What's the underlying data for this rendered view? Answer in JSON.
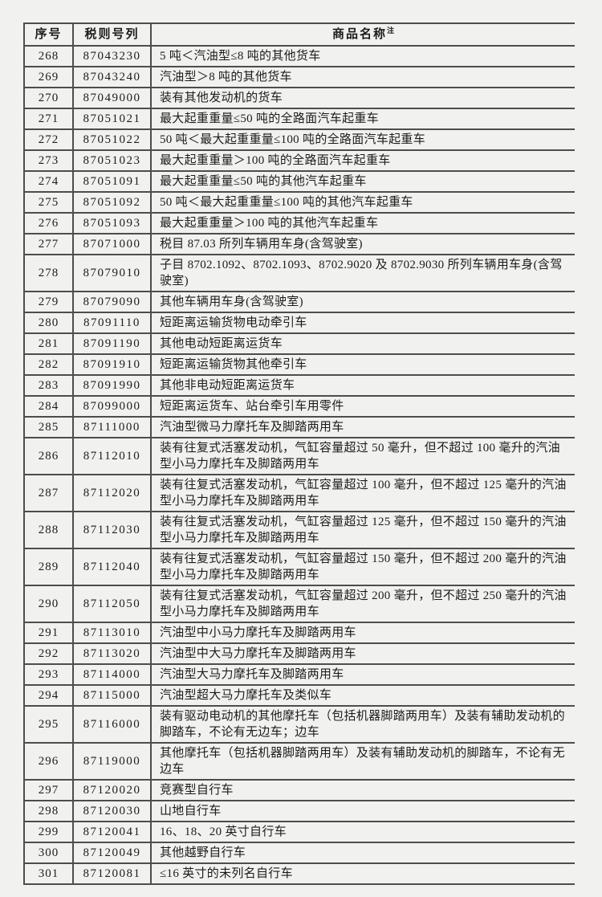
{
  "page": {
    "background_color": "#f1f1ef",
    "line_color": "#4d4d4d",
    "text_color": "#1c1c1c"
  },
  "table": {
    "columns": {
      "index_label": "序号",
      "code_label": "税则号列",
      "name_label": "商品名称",
      "name_note": "注"
    },
    "rows": [
      {
        "no": "268",
        "code": "87043230",
        "name": "5 吨＜汽油型≤8 吨的其他货车"
      },
      {
        "no": "269",
        "code": "87043240",
        "name": "汽油型＞8 吨的其他货车"
      },
      {
        "no": "270",
        "code": "87049000",
        "name": "装有其他发动机的货车"
      },
      {
        "no": "271",
        "code": "87051021",
        "name": "最大起重重量≤50 吨的全路面汽车起重车"
      },
      {
        "no": "272",
        "code": "87051022",
        "name": "50 吨＜最大起重重量≤100 吨的全路面汽车起重车"
      },
      {
        "no": "273",
        "code": "87051023",
        "name": "最大起重重量＞100 吨的全路面汽车起重车"
      },
      {
        "no": "274",
        "code": "87051091",
        "name": "最大起重重量≤50 吨的其他汽车起重车"
      },
      {
        "no": "275",
        "code": "87051092",
        "name": "50 吨＜最大起重重量≤100 吨的其他汽车起重车"
      },
      {
        "no": "276",
        "code": "87051093",
        "name": "最大起重重量＞100 吨的其他汽车起重车"
      },
      {
        "no": "277",
        "code": "87071000",
        "name": "税目 87.03 所列车辆用车身(含驾驶室)"
      },
      {
        "no": "278",
        "code": "87079010",
        "name": "子目 8702.1092、8702.1093、8702.9020 及 8702.9030 所列车辆用车身(含驾驶室)"
      },
      {
        "no": "279",
        "code": "87079090",
        "name": "其他车辆用车身(含驾驶室)"
      },
      {
        "no": "280",
        "code": "87091110",
        "name": "短距离运输货物电动牵引车"
      },
      {
        "no": "281",
        "code": "87091190",
        "name": "其他电动短距离运货车"
      },
      {
        "no": "282",
        "code": "87091910",
        "name": "短距离运输货物其他牵引车"
      },
      {
        "no": "283",
        "code": "87091990",
        "name": "其他非电动短距离运货车"
      },
      {
        "no": "284",
        "code": "87099000",
        "name": "短距离运货车、站台牵引车用零件"
      },
      {
        "no": "285",
        "code": "87111000",
        "name": "汽油型微马力摩托车及脚踏两用车"
      },
      {
        "no": "286",
        "code": "87112010",
        "name": "装有往复式活塞发动机，气缸容量超过 50 毫升，但不超过 100 毫升的汽油型小马力摩托车及脚踏两用车"
      },
      {
        "no": "287",
        "code": "87112020",
        "name": "装有往复式活塞发动机，气缸容量超过 100 毫升，但不超过 125 毫升的汽油型小马力摩托车及脚踏两用车"
      },
      {
        "no": "288",
        "code": "87112030",
        "name": "装有往复式活塞发动机，气缸容量超过 125 毫升，但不超过 150 毫升的汽油型小马力摩托车及脚踏两用车"
      },
      {
        "no": "289",
        "code": "87112040",
        "name": "装有往复式活塞发动机，气缸容量超过 150 毫升，但不超过 200 毫升的汽油型小马力摩托车及脚踏两用车"
      },
      {
        "no": "290",
        "code": "87112050",
        "name": "装有往复式活塞发动机，气缸容量超过 200 毫升，但不超过 250 毫升的汽油型小马力摩托车及脚踏两用车"
      },
      {
        "no": "291",
        "code": "87113010",
        "name": "汽油型中小马力摩托车及脚踏两用车"
      },
      {
        "no": "292",
        "code": "87113020",
        "name": "汽油型中大马力摩托车及脚踏两用车"
      },
      {
        "no": "293",
        "code": "87114000",
        "name": "汽油型大马力摩托车及脚踏两用车"
      },
      {
        "no": "294",
        "code": "87115000",
        "name": "汽油型超大马力摩托车及类似车"
      },
      {
        "no": "295",
        "code": "87116000",
        "name": "装有驱动电动机的其他摩托车（包括机器脚踏两用车）及装有辅助发动机的脚踏车，不论有无边车；边车"
      },
      {
        "no": "296",
        "code": "87119000",
        "name": "其他摩托车（包括机器脚踏两用车）及装有辅助发动机的脚踏车，不论有无边车"
      },
      {
        "no": "297",
        "code": "87120020",
        "name": "竞赛型自行车"
      },
      {
        "no": "298",
        "code": "87120030",
        "name": "山地自行车"
      },
      {
        "no": "299",
        "code": "87120041",
        "name": "16、18、20 英寸自行车"
      },
      {
        "no": "300",
        "code": "87120049",
        "name": "其他越野自行车"
      },
      {
        "no": "301",
        "code": "87120081",
        "name": "≤16 英寸的未列名自行车"
      }
    ]
  }
}
